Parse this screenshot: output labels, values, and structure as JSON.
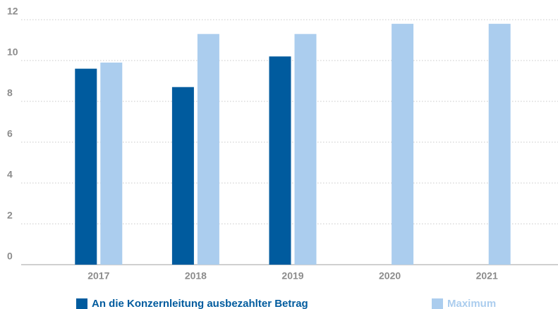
{
  "chart_data": {
    "type": "bar",
    "categories": [
      "2017",
      "2018",
      "2019",
      "2020",
      "2021"
    ],
    "series": [
      {
        "name": "An die Konzernleitung ausbezahlter Betrag",
        "color": "#005b9e",
        "values": [
          9.6,
          8.7,
          10.2,
          null,
          null
        ]
      },
      {
        "name": "Maximum",
        "color": "#abcdee",
        "values": [
          9.9,
          11.3,
          11.3,
          11.8,
          11.8
        ]
      }
    ],
    "ylim": [
      0,
      12
    ],
    "yticks": [
      0,
      2,
      4,
      6,
      8,
      10,
      12
    ],
    "grid": true,
    "legend": "bottom"
  }
}
